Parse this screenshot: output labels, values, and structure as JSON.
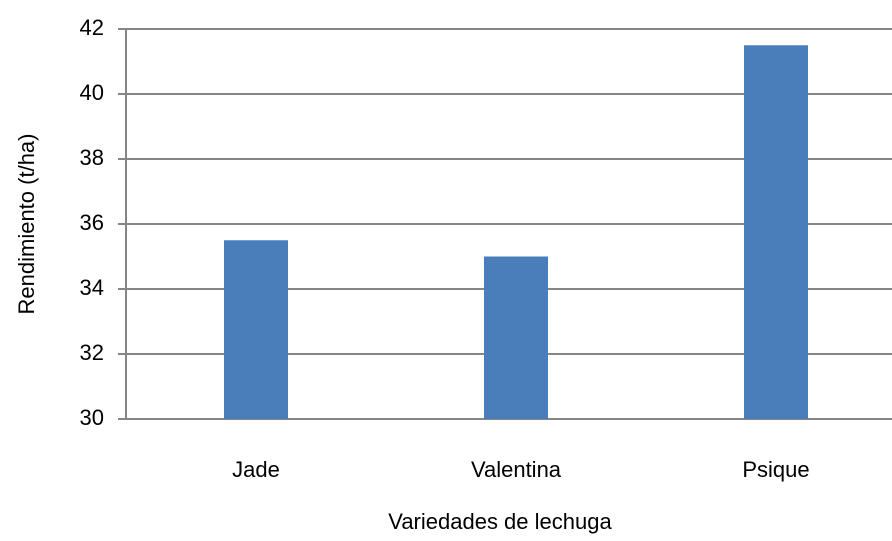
{
  "chart_data": {
    "type": "bar",
    "categories": [
      "Jade",
      "Valentina",
      "Psique"
    ],
    "values": [
      35.5,
      35,
      41.5
    ],
    "color": "#4a7ebb",
    "ylim": [
      30,
      42
    ],
    "yticks": [
      30,
      32,
      34,
      36,
      38,
      40,
      42
    ],
    "grid": true,
    "x_label": "Variedades de lechuga",
    "y_label": "Rendimiento (t/ha)"
  }
}
